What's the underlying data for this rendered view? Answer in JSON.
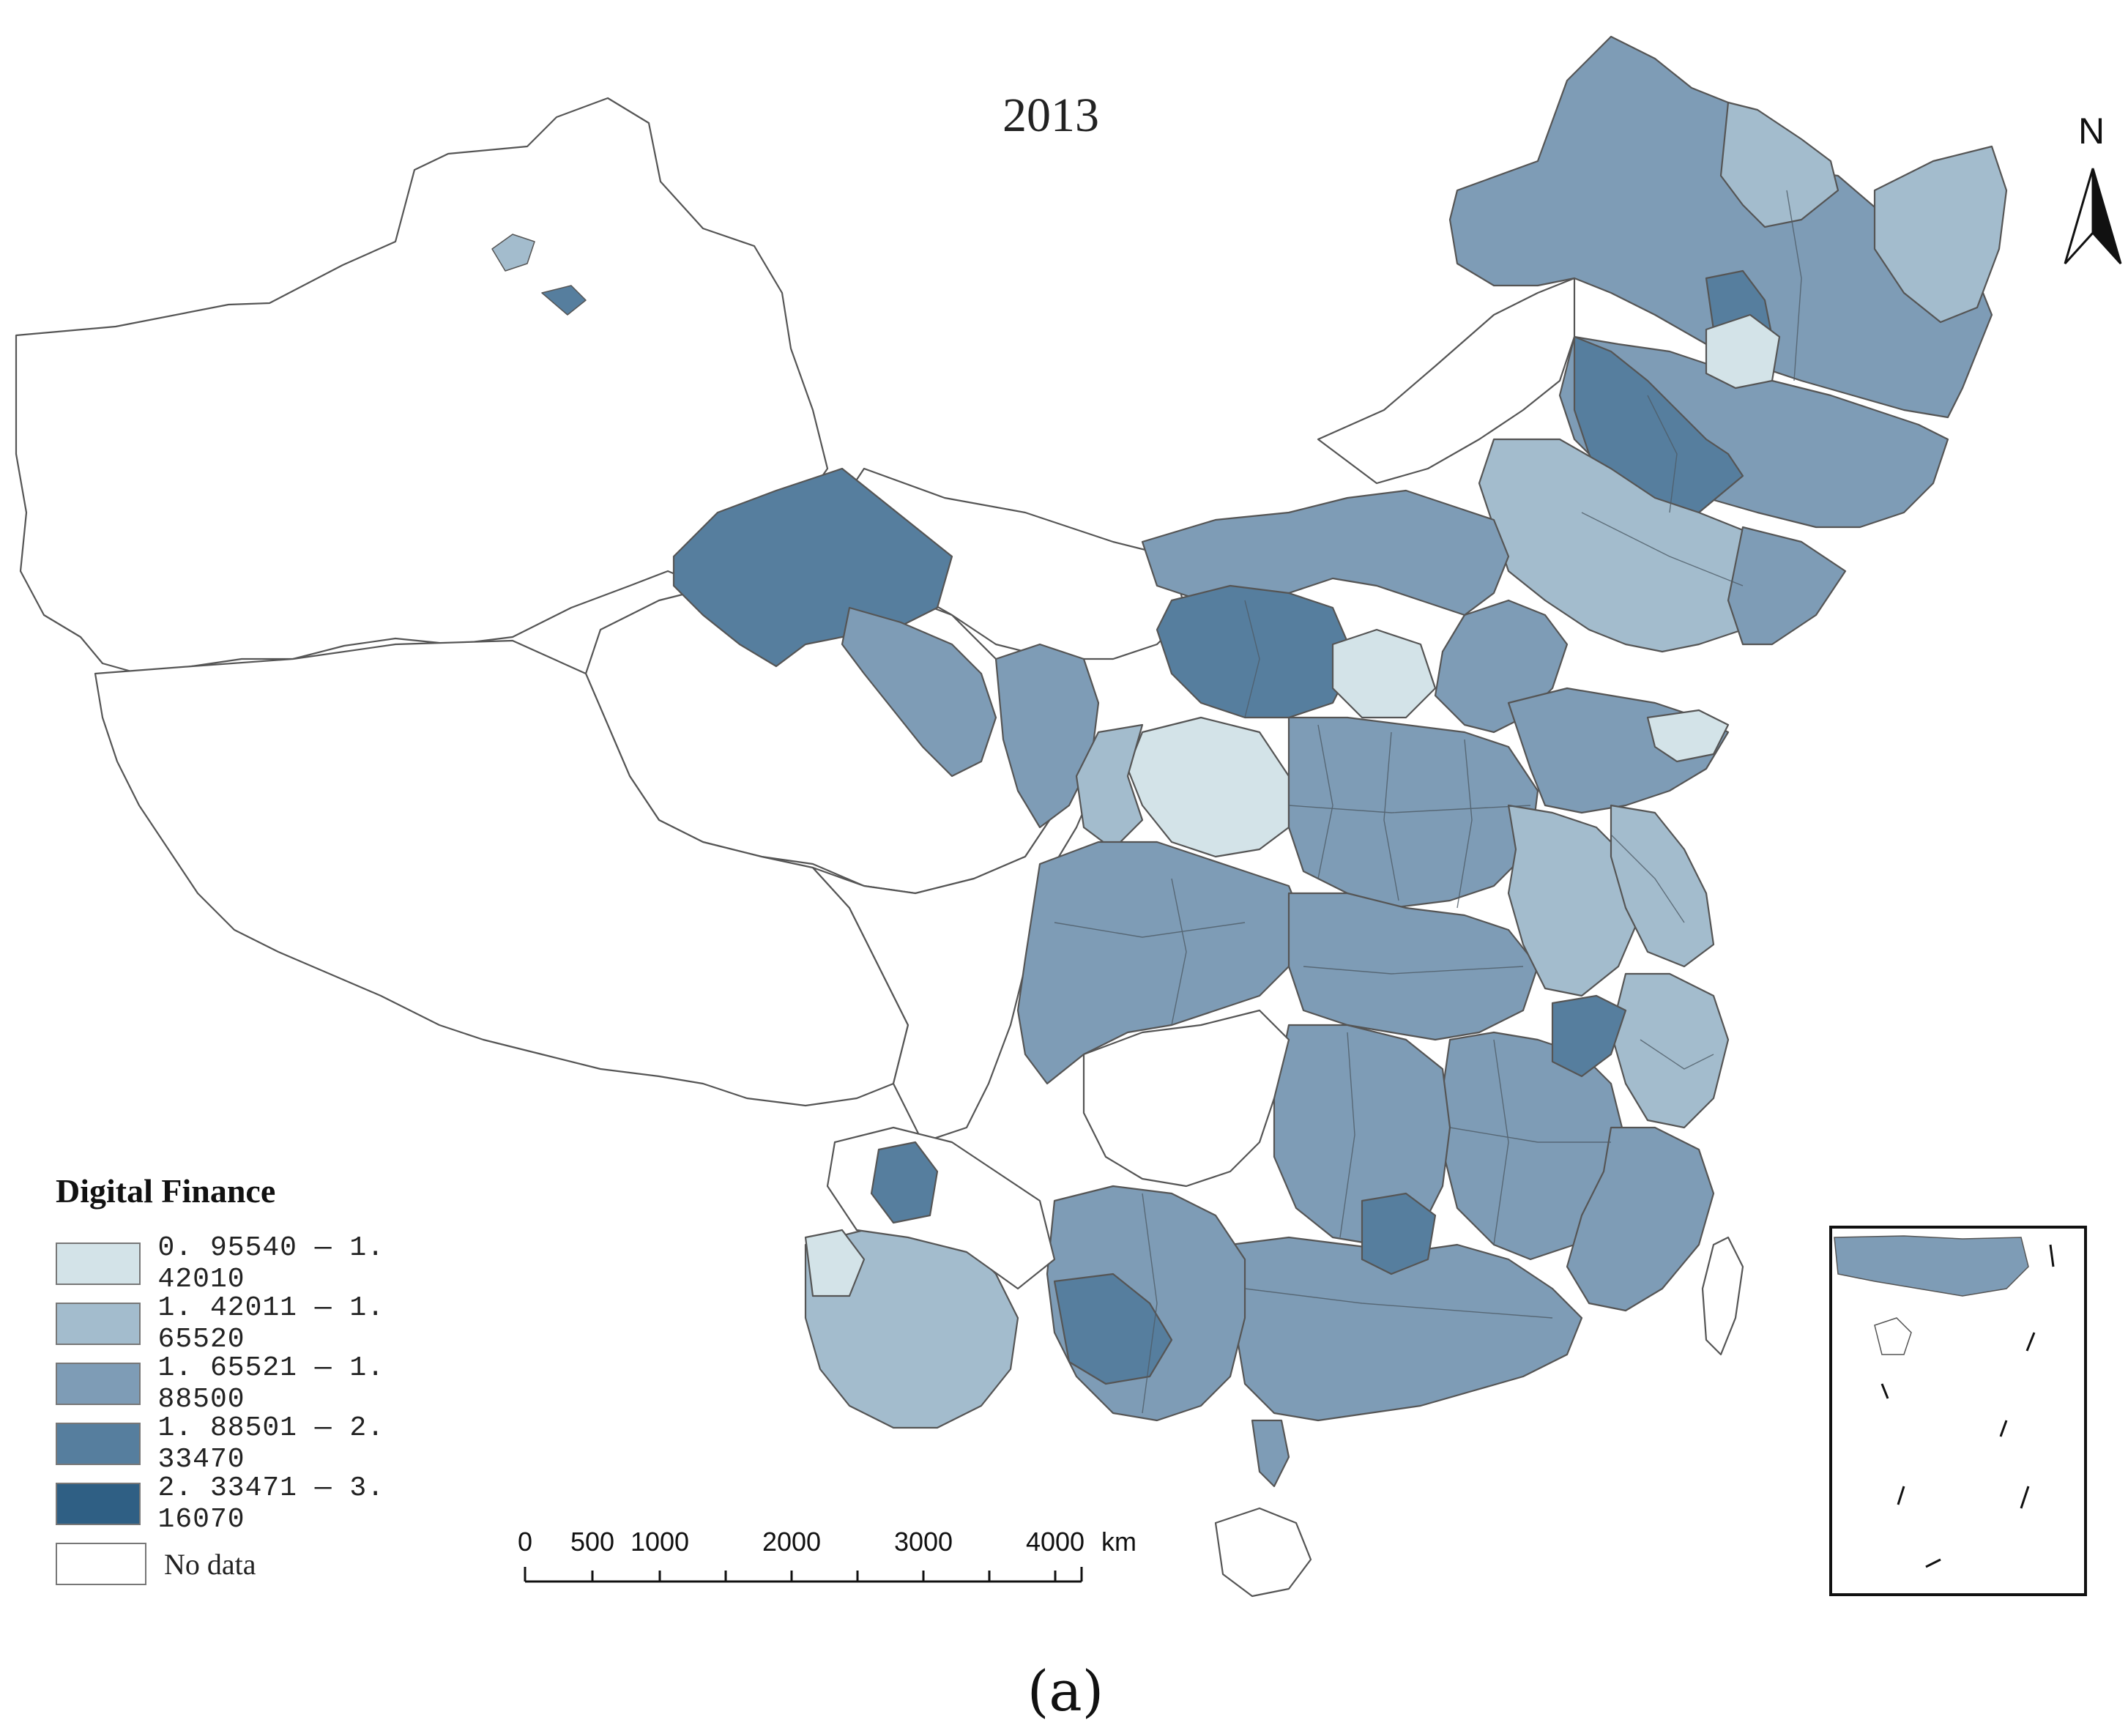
{
  "map": {
    "title": "2013",
    "caption": "(a)",
    "north_label": "N"
  },
  "legend": {
    "title": "Digital Finance",
    "items": [
      {
        "label": "0. 95540 — 1. 42010",
        "color": "#d3e3e8"
      },
      {
        "label": "1. 42011 — 1. 65520",
        "color": "#a3bccd"
      },
      {
        "label": "1. 65521 — 1. 88500",
        "color": "#7e9cb6"
      },
      {
        "label": "1. 88501 — 2. 33470",
        "color": "#567e9e"
      },
      {
        "label": "2. 33471 — 3. 16070",
        "color": "#2f5f84"
      },
      {
        "label": "No data",
        "color": "#ffffff"
      }
    ]
  },
  "scale": {
    "ticks": [
      "0",
      "500",
      "1000",
      "2000",
      "3000",
      "4000"
    ],
    "unit": "km"
  }
}
